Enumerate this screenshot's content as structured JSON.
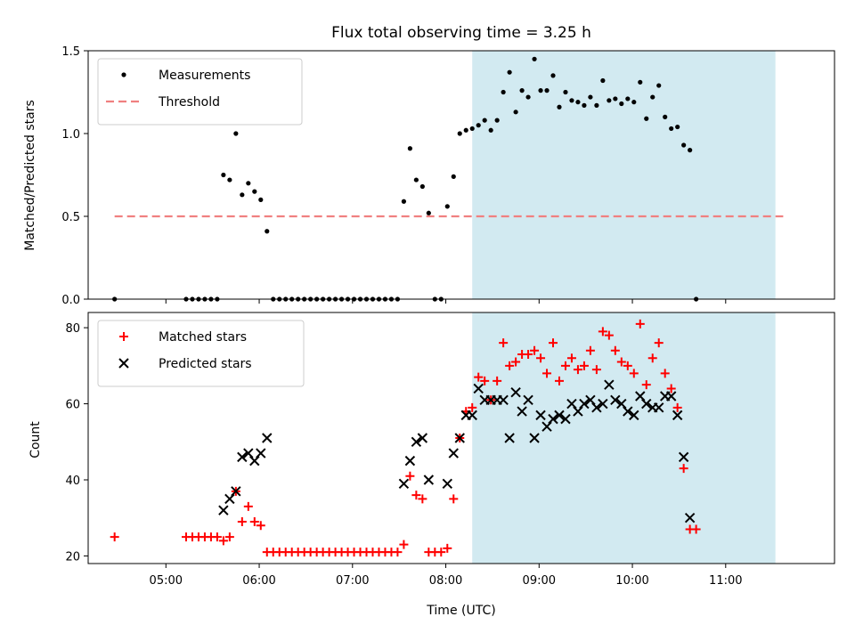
{
  "chart_data": {
    "type": "scatter",
    "title": "Flux total observing time = 3.25 h",
    "xlabel": "Time (UTC)",
    "xlim": [
      "04:10",
      "12:10"
    ],
    "x_ticks": [
      "05:00",
      "06:00",
      "07:00",
      "08:00",
      "09:00",
      "10:00",
      "11:00"
    ],
    "highlight_band": {
      "x_start": "08:17",
      "x_end": "11:32",
      "color": "#add8e6"
    },
    "panels": [
      {
        "ylabel": "Matched/Predicted stars",
        "ylim": [
          0,
          1.5
        ],
        "y_ticks": [
          "0.0",
          "0.5",
          "1.0",
          "1.5"
        ],
        "legend_position": "upper left",
        "threshold": {
          "name": "Threshold",
          "value": 0.5,
          "x_start": "04:27",
          "x_end": "11:37",
          "color": "#f08080"
        },
        "series": [
          {
            "name": "Measurements",
            "marker": "dot",
            "color": "#000000",
            "points": [
              [
                "04:27",
                0.0
              ],
              [
                "05:13",
                0.0
              ],
              [
                "05:17",
                0.0
              ],
              [
                "05:21",
                0.0
              ],
              [
                "05:25",
                0.0
              ],
              [
                "05:29",
                0.0
              ],
              [
                "05:33",
                0.0
              ],
              [
                "05:37",
                0.75
              ],
              [
                "05:41",
                0.72
              ],
              [
                "05:45",
                1.0
              ],
              [
                "05:49",
                0.63
              ],
              [
                "05:53",
                0.7
              ],
              [
                "05:57",
                0.65
              ],
              [
                "06:01",
                0.6
              ],
              [
                "06:05",
                0.41
              ],
              [
                "06:09",
                0.0
              ],
              [
                "06:13",
                0.0
              ],
              [
                "06:17",
                0.0
              ],
              [
                "06:21",
                0.0
              ],
              [
                "06:25",
                0.0
              ],
              [
                "06:29",
                0.0
              ],
              [
                "06:33",
                0.0
              ],
              [
                "06:37",
                0.0
              ],
              [
                "06:41",
                0.0
              ],
              [
                "06:45",
                0.0
              ],
              [
                "06:49",
                0.0
              ],
              [
                "06:53",
                0.0
              ],
              [
                "06:57",
                0.0
              ],
              [
                "07:01",
                0.0
              ],
              [
                "07:05",
                0.0
              ],
              [
                "07:09",
                0.0
              ],
              [
                "07:13",
                0.0
              ],
              [
                "07:17",
                0.0
              ],
              [
                "07:21",
                0.0
              ],
              [
                "07:25",
                0.0
              ],
              [
                "07:29",
                0.0
              ],
              [
                "07:33",
                0.59
              ],
              [
                "07:37",
                0.91
              ],
              [
                "07:41",
                0.72
              ],
              [
                "07:45",
                0.68
              ],
              [
                "07:49",
                0.52
              ],
              [
                "07:53",
                0.0
              ],
              [
                "07:57",
                0.0
              ],
              [
                "08:01",
                0.56
              ],
              [
                "08:05",
                0.74
              ],
              [
                "08:09",
                1.0
              ],
              [
                "08:13",
                1.02
              ],
              [
                "08:17",
                1.03
              ],
              [
                "08:21",
                1.05
              ],
              [
                "08:25",
                1.08
              ],
              [
                "08:29",
                1.02
              ],
              [
                "08:33",
                1.08
              ],
              [
                "08:37",
                1.25
              ],
              [
                "08:41",
                1.37
              ],
              [
                "08:45",
                1.13
              ],
              [
                "08:49",
                1.26
              ],
              [
                "08:53",
                1.22
              ],
              [
                "08:57",
                1.45
              ],
              [
                "09:01",
                1.26
              ],
              [
                "09:05",
                1.26
              ],
              [
                "09:09",
                1.35
              ],
              [
                "09:13",
                1.16
              ],
              [
                "09:17",
                1.25
              ],
              [
                "09:21",
                1.2
              ],
              [
                "09:25",
                1.19
              ],
              [
                "09:29",
                1.17
              ],
              [
                "09:33",
                1.22
              ],
              [
                "09:37",
                1.17
              ],
              [
                "09:41",
                1.32
              ],
              [
                "09:45",
                1.2
              ],
              [
                "09:49",
                1.21
              ],
              [
                "09:53",
                1.18
              ],
              [
                "09:57",
                1.21
              ],
              [
                "10:01",
                1.19
              ],
              [
                "10:05",
                1.31
              ],
              [
                "10:09",
                1.09
              ],
              [
                "10:13",
                1.22
              ],
              [
                "10:17",
                1.29
              ],
              [
                "10:21",
                1.1
              ],
              [
                "10:25",
                1.03
              ],
              [
                "10:29",
                1.04
              ],
              [
                "10:33",
                0.93
              ],
              [
                "10:37",
                0.9
              ],
              [
                "10:41",
                0.0
              ]
            ]
          }
        ]
      },
      {
        "ylabel": "Count",
        "ylim": [
          18,
          84
        ],
        "y_ticks": [
          "20",
          "40",
          "60",
          "80"
        ],
        "legend_position": "upper left",
        "series": [
          {
            "name": "Matched stars",
            "marker": "plus",
            "color": "#ff0000",
            "points": [
              [
                "04:27",
                25
              ],
              [
                "05:13",
                25
              ],
              [
                "05:17",
                25
              ],
              [
                "05:21",
                25
              ],
              [
                "05:25",
                25
              ],
              [
                "05:29",
                25
              ],
              [
                "05:33",
                25
              ],
              [
                "05:37",
                24
              ],
              [
                "05:41",
                25
              ],
              [
                "05:45",
                37
              ],
              [
                "05:49",
                29
              ],
              [
                "05:53",
                33
              ],
              [
                "05:57",
                29
              ],
              [
                "06:01",
                28
              ],
              [
                "06:05",
                21
              ],
              [
                "06:09",
                21
              ],
              [
                "06:13",
                21
              ],
              [
                "06:17",
                21
              ],
              [
                "06:21",
                21
              ],
              [
                "06:25",
                21
              ],
              [
                "06:29",
                21
              ],
              [
                "06:33",
                21
              ],
              [
                "06:37",
                21
              ],
              [
                "06:41",
                21
              ],
              [
                "06:45",
                21
              ],
              [
                "06:49",
                21
              ],
              [
                "06:53",
                21
              ],
              [
                "06:57",
                21
              ],
              [
                "07:01",
                21
              ],
              [
                "07:05",
                21
              ],
              [
                "07:09",
                21
              ],
              [
                "07:13",
                21
              ],
              [
                "07:17",
                21
              ],
              [
                "07:21",
                21
              ],
              [
                "07:25",
                21
              ],
              [
                "07:29",
                21
              ],
              [
                "07:33",
                23
              ],
              [
                "07:37",
                41
              ],
              [
                "07:41",
                36
              ],
              [
                "07:45",
                35
              ],
              [
                "07:49",
                21
              ],
              [
                "07:53",
                21
              ],
              [
                "07:57",
                21
              ],
              [
                "08:01",
                22
              ],
              [
                "08:05",
                35
              ],
              [
                "08:09",
                51
              ],
              [
                "08:13",
                58
              ],
              [
                "08:17",
                59
              ],
              [
                "08:21",
                67
              ],
              [
                "08:25",
                66
              ],
              [
                "08:29",
                61
              ],
              [
                "08:33",
                66
              ],
              [
                "08:37",
                76
              ],
              [
                "08:41",
                70
              ],
              [
                "08:45",
                71
              ],
              [
                "08:49",
                73
              ],
              [
                "08:53",
                73
              ],
              [
                "08:57",
                74
              ],
              [
                "09:01",
                72
              ],
              [
                "09:05",
                68
              ],
              [
                "09:09",
                76
              ],
              [
                "09:13",
                66
              ],
              [
                "09:17",
                70
              ],
              [
                "09:21",
                72
              ],
              [
                "09:25",
                69
              ],
              [
                "09:29",
                70
              ],
              [
                "09:33",
                74
              ],
              [
                "09:37",
                69
              ],
              [
                "09:41",
                79
              ],
              [
                "09:45",
                78
              ],
              [
                "09:49",
                74
              ],
              [
                "09:53",
                71
              ],
              [
                "09:57",
                70
              ],
              [
                "10:01",
                68
              ],
              [
                "10:05",
                81
              ],
              [
                "10:09",
                65
              ],
              [
                "10:13",
                72
              ],
              [
                "10:17",
                76
              ],
              [
                "10:21",
                68
              ],
              [
                "10:25",
                64
              ],
              [
                "10:29",
                59
              ],
              [
                "10:33",
                43
              ],
              [
                "10:37",
                27
              ],
              [
                "10:41",
                27
              ]
            ]
          },
          {
            "name": "Predicted stars",
            "marker": "x",
            "color": "#000000",
            "points": [
              [
                "05:37",
                32
              ],
              [
                "05:41",
                35
              ],
              [
                "05:45",
                37
              ],
              [
                "05:49",
                46
              ],
              [
                "05:53",
                47
              ],
              [
                "05:57",
                45
              ],
              [
                "06:01",
                47
              ],
              [
                "06:05",
                51
              ],
              [
                "07:33",
                39
              ],
              [
                "07:37",
                45
              ],
              [
                "07:41",
                50
              ],
              [
                "07:45",
                51
              ],
              [
                "07:49",
                40
              ],
              [
                "08:01",
                39
              ],
              [
                "08:05",
                47
              ],
              [
                "08:09",
                51
              ],
              [
                "08:13",
                57
              ],
              [
                "08:17",
                57
              ],
              [
                "08:21",
                64
              ],
              [
                "08:25",
                61
              ],
              [
                "08:29",
                61
              ],
              [
                "08:33",
                61
              ],
              [
                "08:37",
                61
              ],
              [
                "08:41",
                51
              ],
              [
                "08:45",
                63
              ],
              [
                "08:49",
                58
              ],
              [
                "08:53",
                61
              ],
              [
                "08:57",
                51
              ],
              [
                "09:01",
                57
              ],
              [
                "09:05",
                54
              ],
              [
                "09:09",
                56
              ],
              [
                "09:13",
                57
              ],
              [
                "09:17",
                56
              ],
              [
                "09:21",
                60
              ],
              [
                "09:25",
                58
              ],
              [
                "09:29",
                60
              ],
              [
                "09:33",
                61
              ],
              [
                "09:37",
                59
              ],
              [
                "09:41",
                60
              ],
              [
                "09:45",
                65
              ],
              [
                "09:49",
                61
              ],
              [
                "09:53",
                60
              ],
              [
                "09:57",
                58
              ],
              [
                "10:01",
                57
              ],
              [
                "10:05",
                62
              ],
              [
                "10:09",
                60
              ],
              [
                "10:13",
                59
              ],
              [
                "10:17",
                59
              ],
              [
                "10:21",
                62
              ],
              [
                "10:25",
                62
              ],
              [
                "10:29",
                57
              ],
              [
                "10:33",
                46
              ],
              [
                "10:37",
                30
              ]
            ]
          }
        ]
      }
    ]
  }
}
